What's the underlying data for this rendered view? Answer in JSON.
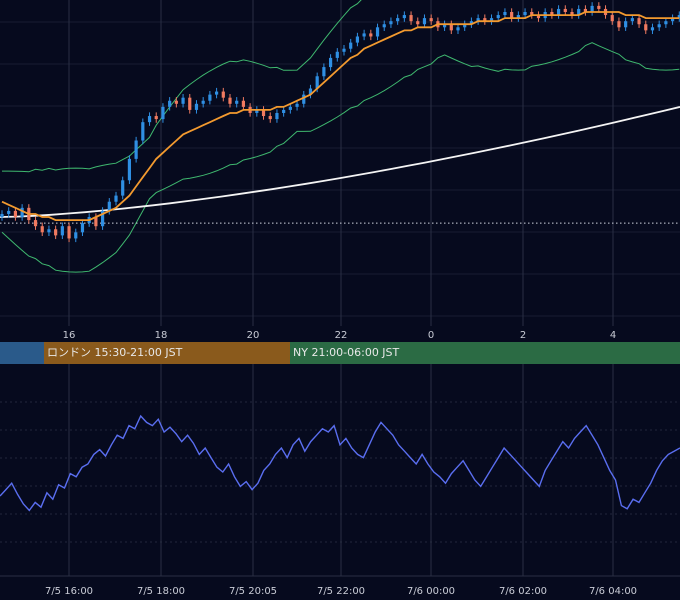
{
  "colors": {
    "background": "#060a1e",
    "grid": "#2a2f44",
    "bull_candle": "#2f8fe3",
    "bear_candle": "#f07a60",
    "ma_short": "#f39a2f",
    "ma_long": "#f4f4f4",
    "bollinger": "#3fb86f",
    "oscillator": "#5a6ef0",
    "session_tokyo": "#2a5a8a",
    "session_london": "#8a5a1c",
    "session_ny": "#2b6b44"
  },
  "sessions": [
    {
      "id": "tokyo",
      "label": ""
    },
    {
      "id": "london",
      "label": "ロンドン 15:30-21:00 JST"
    },
    {
      "id": "ny",
      "label": "NY 21:00-06:00 JST"
    }
  ],
  "chart_data": [
    {
      "type": "candlestick",
      "x_axis_tick_labels": [
        "16",
        "18",
        "20",
        "22",
        "0",
        "2",
        "4"
      ],
      "y_axis_labels_visible": false,
      "indicators": [
        "moving-average-short",
        "moving-average-long",
        "bollinger-bands"
      ],
      "grid": true,
      "ylim": [
        0,
        100
      ],
      "reference_line": 31,
      "candles_close": [
        34,
        35,
        33,
        36,
        32,
        30,
        28,
        29,
        27,
        30,
        26,
        28,
        31,
        33,
        30,
        35,
        38,
        40,
        45,
        52,
        58,
        64,
        66,
        65,
        69,
        71,
        70,
        72,
        68,
        70,
        71,
        73,
        74,
        72,
        70,
        71,
        69,
        67,
        68,
        66,
        65,
        67,
        68,
        69,
        70,
        73,
        75,
        79,
        82,
        85,
        87,
        88,
        90,
        92,
        93,
        92,
        95,
        96,
        97,
        98,
        99,
        97,
        96,
        98,
        97,
        95,
        96,
        94,
        95,
        96,
        97,
        98,
        97,
        98,
        99,
        100,
        98,
        99,
        100,
        99,
        98,
        100,
        99,
        101,
        100,
        99,
        101,
        100,
        102,
        101,
        99,
        97,
        95,
        97,
        98,
        96,
        94,
        95,
        96,
        97,
        98,
        99
      ],
      "ma_short": [
        38,
        37,
        36,
        35,
        34,
        34,
        33,
        33,
        32,
        32,
        32,
        32,
        32,
        32,
        33,
        34,
        35,
        36,
        38,
        40,
        43,
        46,
        49,
        52,
        54,
        56,
        58,
        60,
        61,
        62,
        63,
        64,
        65,
        66,
        67,
        67,
        68,
        68,
        68,
        68,
        68,
        69,
        69,
        70,
        71,
        72,
        73,
        75,
        77,
        79,
        81,
        83,
        85,
        86,
        88,
        89,
        90,
        91,
        92,
        93,
        94,
        94,
        95,
        95,
        95,
        96,
        96,
        96,
        96,
        96,
        96,
        97,
        97,
        97,
        97,
        98,
        98,
        98,
        98,
        99,
        99,
        99,
        99,
        99,
        99,
        99,
        99,
        100,
        100,
        100,
        100,
        100,
        100,
        99,
        99,
        99,
        98,
        98,
        98,
        98,
        98,
        98
      ],
      "ma_long_start": 33,
      "ma_long_end": 69
    },
    {
      "type": "line",
      "x_axis_tick_labels": [
        "7/5 16:00",
        "7/5 18:00",
        "7/5 20:05",
        "7/5 22:00",
        "7/6 00:00",
        "7/6 02:00",
        "7/6 04:00"
      ],
      "ylim": [
        0,
        100
      ],
      "grid": true,
      "values": [
        40,
        44,
        48,
        41,
        35,
        31,
        36,
        33,
        42,
        38,
        47,
        45,
        54,
        52,
        58,
        60,
        66,
        69,
        65,
        72,
        78,
        76,
        84,
        82,
        90,
        86,
        84,
        88,
        80,
        83,
        79,
        74,
        78,
        73,
        66,
        70,
        64,
        58,
        55,
        60,
        52,
        46,
        49,
        44,
        48,
        56,
        60,
        66,
        70,
        64,
        72,
        76,
        68,
        74,
        78,
        82,
        80,
        84,
        72,
        76,
        70,
        66,
        64,
        72,
        80,
        86,
        82,
        78,
        72,
        68,
        64,
        60,
        66,
        60,
        55,
        52,
        48,
        54,
        58,
        62,
        56,
        50,
        46,
        52,
        58,
        64,
        70,
        66,
        62,
        58,
        54,
        50,
        46,
        56,
        62,
        68,
        74,
        70,
        76,
        80,
        84,
        78,
        72,
        64,
        56,
        50,
        34,
        32,
        38,
        36,
        42,
        48,
        56,
        62,
        66,
        68,
        70
      ]
    }
  ]
}
